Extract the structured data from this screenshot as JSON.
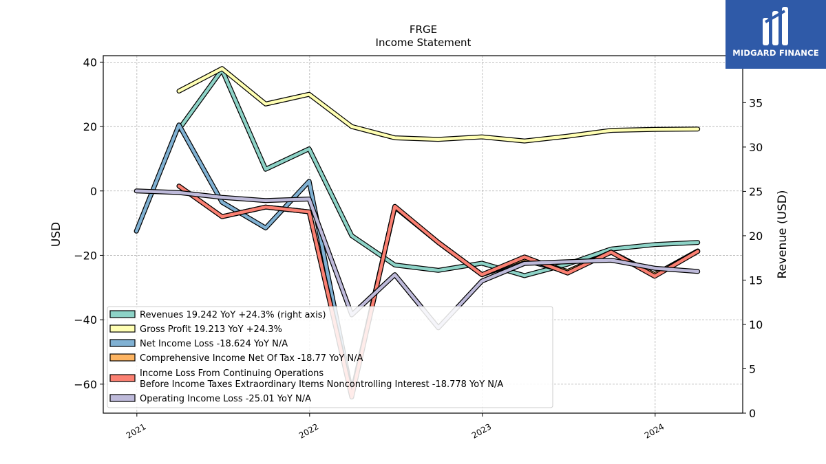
{
  "logo": {
    "name": "MIDGARD FINANCE"
  },
  "chart_data": {
    "type": "line",
    "title": "FRGE",
    "subtitle": "Income Statement",
    "ylabel": "USD",
    "y2label": "Revenue (USD)",
    "ylim": [
      -69,
      42
    ],
    "y2lim": [
      0,
      40.3
    ],
    "xlim": [
      "2020-10-22",
      "2024-07-04"
    ],
    "yticks": [
      40,
      20,
      0,
      -20,
      -40,
      -60
    ],
    "y2ticks": [
      0,
      5,
      10,
      15,
      20,
      25,
      30,
      35
    ],
    "xticks": [
      "2021",
      "2022",
      "2023",
      "2024"
    ],
    "grid": true,
    "legend_position": "lower-left",
    "series": [
      {
        "name": "Revenues",
        "legend_label": "Revenues  19.242 YoY +24.3% (right axis)",
        "axis": "right",
        "color": "#8dd3c7",
        "x": [
          "2021-03-31",
          "2021-06-30",
          "2021-09-30",
          "2021-12-31",
          "2022-03-31",
          "2022-06-30",
          "2022-09-30",
          "2022-12-31",
          "2023-03-31",
          "2023-06-30",
          "2023-09-30",
          "2023-12-31",
          "2024-03-31"
        ],
        "values": [
          32.0,
          38.7,
          27.5,
          29.8,
          20.0,
          16.7,
          16.1,
          16.9,
          15.5,
          16.8,
          18.5,
          19.0,
          19.242
        ]
      },
      {
        "name": "Gross Profit",
        "legend_label": "Gross Profit  19.213 YoY +24.3%",
        "axis": "left",
        "color": "#ffffb3",
        "x": [
          "2021-03-31",
          "2021-06-30",
          "2021-09-30",
          "2021-12-31",
          "2022-03-31",
          "2022-06-30",
          "2022-09-30",
          "2022-12-31",
          "2023-03-31",
          "2023-06-30",
          "2023-09-30",
          "2023-12-31",
          "2024-03-31"
        ],
        "values": [
          31.0,
          38.0,
          27.0,
          30.0,
          20.0,
          16.5,
          16.0,
          16.8,
          15.5,
          17.0,
          18.8,
          19.1,
          19.213
        ]
      },
      {
        "name": "Net Income Loss",
        "legend_label": "Net Income Loss  -18.624 YoY N/A",
        "axis": "left",
        "color": "#80b1d3",
        "x": [
          "2020-12-31",
          "2021-03-31",
          "2021-06-30",
          "2021-09-30",
          "2021-12-31",
          "2022-03-31",
          "2022-06-30",
          "2022-09-30",
          "2022-12-31",
          "2023-03-31",
          "2023-06-30",
          "2023-09-30",
          "2023-12-31",
          "2024-03-31"
        ],
        "values": [
          -12.5,
          20.5,
          -3.5,
          -11.5,
          3.0,
          -63.0,
          -5.0,
          -16.0,
          -26.0,
          -21.5,
          -25.0,
          -19.0,
          -26.0,
          -18.624
        ]
      },
      {
        "name": "Comprehensive Income Net Of Tax",
        "legend_label": "Comprehensive Income Net Of Tax  -18.77 YoY N/A",
        "axis": "left",
        "color": "#fdb462",
        "x": [
          "2021-03-31",
          "2021-06-30",
          "2021-09-30",
          "2021-12-31",
          "2022-03-31",
          "2022-06-30",
          "2022-09-30",
          "2022-12-31",
          "2023-03-31",
          "2023-06-30",
          "2023-09-30",
          "2023-12-31",
          "2024-03-31"
        ],
        "values": [
          1.5,
          -8.0,
          -5.0,
          -6.5,
          -63.5,
          -5.0,
          -16.0,
          -26.0,
          -21.0,
          -25.0,
          -19.0,
          -26.0,
          -18.77
        ]
      },
      {
        "name": "Income Loss From Continuing Operations Before Income Taxes Extraordinary Items Noncontrolling Interest",
        "legend_label": "Income Loss From Continuing Operations\nBefore Income Taxes Extraordinary Items Noncontrolling Interest  -18.778 YoY N/A",
        "axis": "left",
        "color": "#fb8072",
        "x": [
          "2021-03-31",
          "2021-06-30",
          "2021-09-30",
          "2021-12-31",
          "2022-03-31",
          "2022-06-30",
          "2022-09-30",
          "2022-12-31",
          "2023-03-31",
          "2023-06-30",
          "2023-09-30",
          "2023-12-31",
          "2024-03-31"
        ],
        "values": [
          1.5,
          -8.0,
          -5.0,
          -6.5,
          -64.0,
          -4.8,
          -16.0,
          -26.0,
          -20.5,
          -25.5,
          -19.0,
          -26.5,
          -18.778
        ]
      },
      {
        "name": "Operating Income Loss",
        "legend_label": "Operating Income Loss  -25.01 YoY N/A",
        "axis": "left",
        "color": "#bebada",
        "x": [
          "2020-12-31",
          "2021-03-31",
          "2021-06-30",
          "2021-09-30",
          "2021-12-31",
          "2022-03-31",
          "2022-06-30",
          "2022-09-30",
          "2022-12-31",
          "2023-03-31",
          "2023-06-30",
          "2023-09-30",
          "2023-12-31",
          "2024-03-31"
        ],
        "values": [
          0.0,
          -0.5,
          -2.0,
          -3.0,
          -2.5,
          -38.5,
          -26.0,
          -42.5,
          -28.0,
          -22.5,
          -22.0,
          -21.5,
          -24.0,
          -25.01
        ]
      }
    ]
  }
}
